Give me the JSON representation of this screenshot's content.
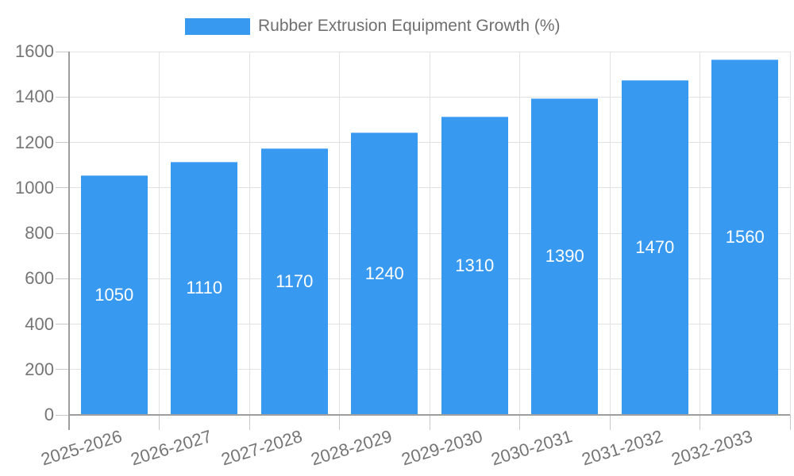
{
  "chart_data": {
    "type": "bar",
    "legend": "Rubber Extrusion Equipment Growth (%)",
    "legend_position": "top",
    "categories": [
      "2025-2026",
      "2026-2027",
      "2027-2028",
      "2028-2029",
      "2029-2030",
      "2030-2031",
      "2031-2032",
      "2032-2033"
    ],
    "values": [
      1050,
      1110,
      1170,
      1240,
      1310,
      1390,
      1470,
      1560
    ],
    "value_labels_inside_bars": true,
    "xlabel": "",
    "ylabel": "",
    "ylim": [
      0,
      1600
    ],
    "yticks": [
      0,
      200,
      400,
      600,
      800,
      1000,
      1200,
      1400,
      1600
    ],
    "grid": true,
    "colors": {
      "bar": "#3899f0",
      "value_label": "#ffffff",
      "tick_text": "#757575",
      "legend_text": "#6f6f6f",
      "gridline": "#e2e2e2",
      "axis_line": "#9e9e9e",
      "background": "#ffffff"
    }
  }
}
